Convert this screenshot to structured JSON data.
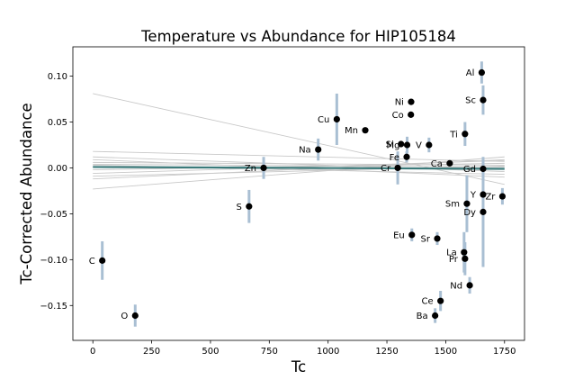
{
  "chart_data": {
    "type": "scatter",
    "title": "Temperature vs Abundance for HIP105184",
    "xlabel": "Tc",
    "ylabel": "Tc-Corrected Abundance",
    "xlim": [
      -85,
      1835
    ],
    "ylim": [
      -0.188,
      0.132
    ],
    "x_ticks": [
      0,
      250,
      500,
      750,
      1000,
      1250,
      1500,
      1750
    ],
    "y_ticks": [
      -0.15,
      -0.1,
      -0.05,
      0.0,
      0.05,
      0.1
    ],
    "y_tick_labels": [
      "−0.15",
      "−0.10",
      "−0.05",
      "0.00",
      "0.05",
      "0.10"
    ],
    "grid": false,
    "colors": {
      "points": "#000000",
      "error_bars": "#a9bfd3",
      "fit_line": "#3b7a7a",
      "bootstrap_lines": "#c8c8c8"
    },
    "points": [
      {
        "label": "C",
        "x": 40,
        "y": -0.101,
        "err": 0.021
      },
      {
        "label": "O",
        "x": 180,
        "y": -0.161,
        "err": 0.012
      },
      {
        "label": "S",
        "x": 664,
        "y": -0.042,
        "err": 0.018
      },
      {
        "label": "Zn",
        "x": 726,
        "y": 0.0,
        "err": 0.012
      },
      {
        "label": "Na",
        "x": 958,
        "y": 0.02,
        "err": 0.012
      },
      {
        "label": "Cu",
        "x": 1037,
        "y": 0.053,
        "err": 0.028
      },
      {
        "label": "Mn",
        "x": 1158,
        "y": 0.041,
        "err": 0.0
      },
      {
        "label": "Cr",
        "x": 1296,
        "y": 0.0,
        "err": 0.018
      },
      {
        "label": "Si",
        "x": 1310,
        "y": 0.026,
        "err": 0.0
      },
      {
        "label": "Mg",
        "x": 1336,
        "y": 0.025,
        "err": 0.009
      },
      {
        "label": "Fe",
        "x": 1334,
        "y": 0.012,
        "err": 0.006
      },
      {
        "label": "Co",
        "x": 1352,
        "y": 0.058,
        "err": 0.0
      },
      {
        "label": "Ni",
        "x": 1353,
        "y": 0.072,
        "err": 0.0
      },
      {
        "label": "Eu",
        "x": 1356,
        "y": -0.073,
        "err": 0.007
      },
      {
        "label": "V",
        "x": 1429,
        "y": 0.025,
        "err": 0.008
      },
      {
        "label": "Sr",
        "x": 1464,
        "y": -0.077,
        "err": 0.007
      },
      {
        "label": "Ba",
        "x": 1455,
        "y": -0.161,
        "err": 0.008
      },
      {
        "label": "Ce",
        "x": 1478,
        "y": -0.145,
        "err": 0.011
      },
      {
        "label": "Ca",
        "x": 1517,
        "y": 0.005,
        "err": 0.0
      },
      {
        "label": "Ti",
        "x": 1582,
        "y": 0.037,
        "err": 0.013
      },
      {
        "label": "La",
        "x": 1578,
        "y": -0.092,
        "err": 0.022
      },
      {
        "label": "Pr",
        "x": 1582,
        "y": -0.099,
        "err": 0.018
      },
      {
        "label": "Sm",
        "x": 1590,
        "y": -0.039,
        "err": 0.031
      },
      {
        "label": "Nd",
        "x": 1602,
        "y": -0.128,
        "err": 0.009
      },
      {
        "label": "Al",
        "x": 1653,
        "y": 0.104,
        "err": 0.012
      },
      {
        "label": "Sc",
        "x": 1659,
        "y": 0.074,
        "err": 0.016
      },
      {
        "label": "Gd",
        "x": 1659,
        "y": -0.001,
        "err": 0.012
      },
      {
        "label": "Y",
        "x": 1659,
        "y": -0.029,
        "err": 0.0
      },
      {
        "label": "Dy",
        "x": 1659,
        "y": -0.048,
        "err": 0.06
      },
      {
        "label": "Zr",
        "x": 1741,
        "y": -0.031,
        "err": 0.009
      }
    ],
    "fit_line": {
      "x": [
        0,
        1750
      ],
      "y": [
        0.001,
        -0.001
      ]
    },
    "bootstrap_lines": [
      {
        "x": [
          0,
          1750
        ],
        "y": [
          0.081,
          -0.018
        ]
      },
      {
        "x": [
          0,
          1750
        ],
        "y": [
          -0.023,
          0.012
        ]
      },
      {
        "x": [
          0,
          1750
        ],
        "y": [
          0.018,
          0.007
        ]
      },
      {
        "x": [
          0,
          1750
        ],
        "y": [
          0.012,
          -0.004
        ]
      },
      {
        "x": [
          0,
          1750
        ],
        "y": [
          -0.012,
          0.009
        ]
      },
      {
        "x": [
          0,
          1750
        ],
        "y": [
          0.006,
          0.003
        ]
      },
      {
        "x": [
          0,
          1750
        ],
        "y": [
          -0.006,
          0.008
        ]
      },
      {
        "x": [
          0,
          1750
        ],
        "y": [
          0.003,
          -0.007
        ]
      },
      {
        "x": [
          0,
          1750
        ],
        "y": [
          -0.002,
          0.005
        ]
      },
      {
        "x": [
          0,
          1750
        ],
        "y": [
          0.009,
          -0.01
        ]
      },
      {
        "x": [
          0,
          1750
        ],
        "y": [
          -0.009,
          0.002
        ]
      },
      {
        "x": [
          0,
          1750
        ],
        "y": [
          0.004,
          0.001
        ]
      }
    ]
  }
}
